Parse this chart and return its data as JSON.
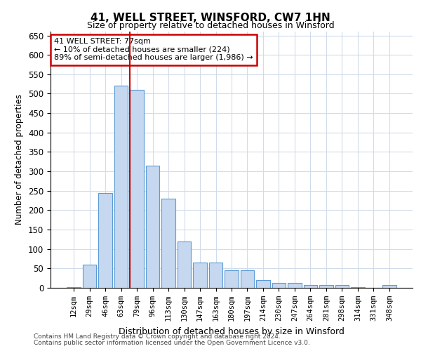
{
  "title": "41, WELL STREET, WINSFORD, CW7 1HN",
  "subtitle": "Size of property relative to detached houses in Winsford",
  "xlabel": "Distribution of detached houses by size in Winsford",
  "ylabel": "Number of detached properties",
  "categories": [
    "12sqm",
    "29sqm",
    "46sqm",
    "63sqm",
    "79sqm",
    "96sqm",
    "113sqm",
    "130sqm",
    "147sqm",
    "163sqm",
    "180sqm",
    "197sqm",
    "214sqm",
    "230sqm",
    "247sqm",
    "264sqm",
    "281sqm",
    "298sqm",
    "314sqm",
    "331sqm",
    "348sqm"
  ],
  "values": [
    2,
    60,
    245,
    520,
    510,
    315,
    230,
    120,
    65,
    65,
    45,
    45,
    20,
    12,
    12,
    8,
    8,
    8,
    1,
    0,
    8
  ],
  "bar_color": "#c5d8f0",
  "bar_edge_color": "#5b9bd5",
  "grid_color": "#d0dcea",
  "background_color": "#ffffff",
  "vline_index": 4,
  "vline_color": "#cc0000",
  "annotation_text": "41 WELL STREET: 77sqm\n← 10% of detached houses are smaller (224)\n89% of semi-detached houses are larger (1,986) →",
  "annotation_box_edgecolor": "#cc0000",
  "footnote1": "Contains HM Land Registry data © Crown copyright and database right 2024.",
  "footnote2": "Contains public sector information licensed under the Open Government Licence v3.0.",
  "ylim": [
    0,
    660
  ],
  "yticks": [
    0,
    50,
    100,
    150,
    200,
    250,
    300,
    350,
    400,
    450,
    500,
    550,
    600,
    650
  ]
}
